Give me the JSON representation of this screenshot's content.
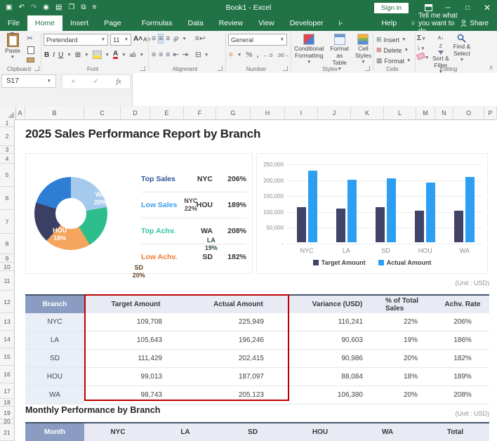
{
  "titlebar": {
    "title": "Book1 - Excel",
    "sign_in": "Sign in",
    "qat_icons": [
      "save-icon",
      "undo-icon",
      "redo-icon",
      "camera-icon",
      "print-preview-icon",
      "copy-icon",
      "paste-special-icon",
      "customize-quick-access-icon"
    ]
  },
  "menu": {
    "tabs": [
      {
        "label": "File",
        "active": false
      },
      {
        "label": "Home",
        "active": true
      },
      {
        "label": "Insert",
        "active": false
      },
      {
        "label": "Page Layout",
        "active": false
      },
      {
        "label": "Formulas",
        "active": false
      },
      {
        "label": "Data",
        "active": false
      },
      {
        "label": "Review",
        "active": false
      },
      {
        "label": "View",
        "active": false
      },
      {
        "label": "Developer",
        "active": false
      },
      {
        "label": "i-MATRIX",
        "active": false
      },
      {
        "label": "Help",
        "active": false
      }
    ],
    "tell_me": "Tell me what you want to do",
    "share": "Share"
  },
  "ribbon": {
    "clipboard": {
      "label": "Clipboard",
      "paste": "Paste"
    },
    "font": {
      "label": "Font",
      "font_name": "Pretendard",
      "font_size": "11"
    },
    "alignment": {
      "label": "Alignment"
    },
    "number": {
      "label": "Number",
      "format": "General"
    },
    "styles": {
      "label": "Styles",
      "buttons": [
        [
          "Conditional",
          "Formatting"
        ],
        [
          "Format as",
          "Table"
        ],
        [
          "Cell",
          "Styles"
        ]
      ]
    },
    "cells": {
      "label": "Cells",
      "buttons": [
        "Insert",
        "Delete",
        "Format"
      ]
    },
    "editing": {
      "label": "Editing",
      "buttons": [
        [
          "Sort &",
          "Filter"
        ],
        [
          "Find &",
          "Select"
        ]
      ]
    }
  },
  "formula_bar": {
    "name_box": "S17"
  },
  "grid": {
    "columns": [
      "A",
      "B",
      "C",
      "D",
      "E",
      "F",
      "G",
      "H",
      "I",
      "J",
      "K",
      "L",
      "M",
      "N",
      "O",
      "P"
    ],
    "rows": [
      "1",
      "2",
      "3",
      "4",
      "5",
      "6",
      "7",
      "8",
      "9",
      "10",
      "11",
      "12",
      "13",
      "14",
      "15",
      "16",
      "17",
      "18",
      "19",
      "20",
      "21"
    ]
  },
  "report": {
    "title": "2025 Sales Performance Report by Branch",
    "unit_label": "(Unit : USD)"
  },
  "kpis": [
    {
      "label": "Top Sales",
      "branch": "NYC",
      "value": "206%",
      "color": "#2F5597"
    },
    {
      "label": "Low Sales",
      "branch": "HOU",
      "value": "189%",
      "color": "#41A0E8"
    },
    {
      "label": "Top Achv.",
      "branch": "WA",
      "value": "208%",
      "color": "#2EC5A0"
    },
    {
      "label": "Low Achv.",
      "branch": "SD",
      "value": "182%",
      "color": "#ED7D31"
    }
  ],
  "chart_data": [
    {
      "type": "pie",
      "subtype": "donut",
      "categories": [
        "NYC",
        "LA",
        "SD",
        "HOU",
        "WA"
      ],
      "values": [
        22,
        19,
        20,
        18,
        20
      ],
      "labels": [
        "22%",
        "19%",
        "20%",
        "18%",
        "20%"
      ],
      "colors": [
        "#A6CAEC",
        "#2EBE8C",
        "#F5A45D",
        "#3B3F63",
        "#2E7FD4"
      ],
      "label_colors": [
        "#3f3f3f",
        "#2b4a43",
        "#5f4223",
        "#ffffff",
        "#ffffff"
      ]
    },
    {
      "type": "bar",
      "categories": [
        "NYC",
        "LA",
        "SD",
        "HOU",
        "WA"
      ],
      "series": [
        {
          "name": "Target Amount",
          "color": "#3F4468",
          "values": [
            109708,
            105643,
            111429,
            99013,
            98743
          ]
        },
        {
          "name": "Actual Amount",
          "color": "#2D9FF3",
          "values": [
            225949,
            196246,
            202415,
            187097,
            205123
          ]
        }
      ],
      "ylim": [
        0,
        250000
      ],
      "yticks": [
        "250,000",
        "200,000",
        "150,000",
        "100,000",
        "50,000",
        "-"
      ],
      "grid": true,
      "legend_position": "bottom"
    }
  ],
  "branch_table": {
    "headers": [
      "Branch",
      "Target Amount",
      "Actual Amount",
      "Variance (USD)",
      "% of Total Sales",
      "Achv. Rate"
    ],
    "rows": [
      [
        "NYC",
        "109,708",
        "225,949",
        "116,241",
        "22%",
        "206%"
      ],
      [
        "LA",
        "105,643",
        "196,246",
        "90,603",
        "19%",
        "186%"
      ],
      [
        "SD",
        "111,429",
        "202,415",
        "90,986",
        "20%",
        "182%"
      ],
      [
        "HOU",
        "99,013",
        "187,097",
        "88,084",
        "18%",
        "189%"
      ],
      [
        "WA",
        "98,743",
        "205,123",
        "106,380",
        "20%",
        "208%"
      ]
    ]
  },
  "monthly": {
    "title": "Monthly Performance by Branch",
    "unit_label": "(Unit : USD)",
    "headers": [
      "Month",
      "NYC",
      "LA",
      "SD",
      "HOU",
      "WA",
      "Total"
    ]
  }
}
